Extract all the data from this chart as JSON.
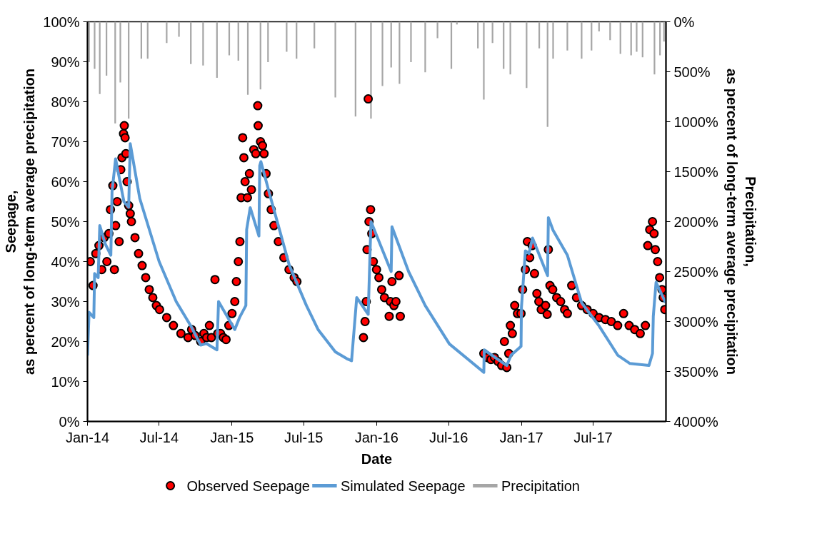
{
  "chart_data": {
    "type": "line",
    "xlabel": "Date",
    "ylabel": "Seepage,\nas percent of long-term average precipitation",
    "y2label": "Precipitation,\nas percent of long-term average precipitation",
    "xlim": [
      "2014-01-01",
      "2018-01-01"
    ],
    "xticks": [
      {
        "value": "2014-01-01",
        "label": "Jan-14"
      },
      {
        "value": "2014-07-01",
        "label": "Jul-14"
      },
      {
        "value": "2015-01-01",
        "label": "Jan-15"
      },
      {
        "value": "2015-07-01",
        "label": "Jul-15"
      },
      {
        "value": "2016-01-01",
        "label": "Jan-16"
      },
      {
        "value": "2016-07-01",
        "label": "Jul-16"
      },
      {
        "value": "2017-01-01",
        "label": "Jan-17"
      },
      {
        "value": "2017-07-01",
        "label": "Jul-17"
      }
    ],
    "ylim": [
      0,
      100
    ],
    "yticks": [
      {
        "value": 0,
        "label": "0%"
      },
      {
        "value": 10,
        "label": "10%"
      },
      {
        "value": 20,
        "label": "20%"
      },
      {
        "value": 30,
        "label": "30%"
      },
      {
        "value": 40,
        "label": "40%"
      },
      {
        "value": 50,
        "label": "50%"
      },
      {
        "value": 60,
        "label": "60%"
      },
      {
        "value": 70,
        "label": "70%"
      },
      {
        "value": 80,
        "label": "80%"
      },
      {
        "value": 90,
        "label": "90%"
      },
      {
        "value": 100,
        "label": "100%"
      }
    ],
    "y2lim": [
      4000,
      0
    ],
    "y2ticks": [
      {
        "value": 0,
        "label": "0%"
      },
      {
        "value": 500,
        "label": "500%"
      },
      {
        "value": 1000,
        "label": "1000%"
      },
      {
        "value": 1500,
        "label": "1500%"
      },
      {
        "value": 2000,
        "label": "2000%"
      },
      {
        "value": 2500,
        "label": "2500%"
      },
      {
        "value": 3000,
        "label": "3000%"
      },
      {
        "value": 3500,
        "label": "3500%"
      },
      {
        "value": 4000,
        "label": "4000%"
      }
    ],
    "grid": false,
    "legend": "bottom",
    "series": [
      {
        "name": "Observed Seepage",
        "type": "scatter",
        "marker": "circle",
        "color": "#ff0000",
        "x": [
          "2014-01-08",
          "2014-01-15",
          "2014-01-22",
          "2014-01-30",
          "2014-02-06",
          "2014-02-12",
          "2014-02-19",
          "2014-02-24",
          "2014-02-28",
          "2014-03-06",
          "2014-03-10",
          "2014-03-13",
          "2014-03-17",
          "2014-03-22",
          "2014-03-26",
          "2014-03-29",
          "2014-04-02",
          "2014-04-04",
          "2014-04-06",
          "2014-04-08",
          "2014-04-11",
          "2014-04-15",
          "2014-04-19",
          "2014-04-22",
          "2014-05-01",
          "2014-05-10",
          "2014-05-19",
          "2014-05-28",
          "2014-06-06",
          "2014-06-15",
          "2014-06-24",
          "2014-07-02",
          "2014-07-20",
          "2014-08-06",
          "2014-08-25",
          "2014-09-12",
          "2014-09-21",
          "2014-09-30",
          "2014-10-14",
          "2014-10-22",
          "2014-10-29",
          "2014-11-05",
          "2014-11-10",
          "2014-11-19",
          "2014-11-26",
          "2014-12-03",
          "2014-12-10",
          "2014-12-17",
          "2014-12-24",
          "2015-01-01",
          "2015-01-08",
          "2015-01-12",
          "2015-01-17",
          "2015-01-21",
          "2015-01-24",
          "2015-01-28",
          "2015-01-31",
          "2015-02-03",
          "2015-02-09",
          "2015-02-14",
          "2015-02-19",
          "2015-02-25",
          "2015-03-02",
          "2015-03-07",
          "2015-03-08",
          "2015-03-14",
          "2015-03-19",
          "2015-03-23",
          "2015-03-28",
          "2015-04-03",
          "2015-04-10",
          "2015-04-17",
          "2015-04-28",
          "2015-05-12",
          "2015-05-25",
          "2015-06-07",
          "2015-06-14",
          "2015-11-29",
          "2015-12-03",
          "2015-12-06",
          "2015-12-08",
          "2015-12-11",
          "2015-12-13",
          "2015-12-17",
          "2015-12-20",
          "2015-12-24",
          "2016-01-01",
          "2016-01-07",
          "2016-01-14",
          "2016-01-21",
          "2016-02-02",
          "2016-02-05",
          "2016-02-09",
          "2016-02-14",
          "2016-02-19",
          "2016-02-27",
          "2016-03-01",
          "2016-09-28",
          "2016-10-07",
          "2016-10-16",
          "2016-10-25",
          "2016-11-03",
          "2016-11-12",
          "2016-11-19",
          "2016-11-25",
          "2016-11-30",
          "2016-12-04",
          "2016-12-09",
          "2016-12-15",
          "2016-12-22",
          "2016-12-31",
          "2017-01-04",
          "2017-01-11",
          "2017-01-16",
          "2017-01-22",
          "2017-01-28",
          "2017-02-03",
          "2017-02-09",
          "2017-02-14",
          "2017-02-20",
          "2017-03-03",
          "2017-03-07",
          "2017-03-10",
          "2017-03-14",
          "2017-03-21",
          "2017-03-31",
          "2017-04-10",
          "2017-04-20",
          "2017-04-27",
          "2017-05-08",
          "2017-05-20",
          "2017-06-02",
          "2017-06-16",
          "2017-07-01",
          "2017-07-16",
          "2017-08-01",
          "2017-08-16",
          "2017-09-01",
          "2017-09-16",
          "2017-09-30",
          "2017-10-14",
          "2017-10-28",
          "2017-11-10",
          "2017-11-16",
          "2017-11-21",
          "2017-11-28",
          "2017-12-02",
          "2017-12-05",
          "2017-12-11",
          "2017-12-16",
          "2017-12-22",
          "2017-12-25",
          "2017-12-29"
        ],
        "values": [
          40,
          34,
          42,
          44,
          38,
          46,
          40,
          47,
          53,
          59,
          38,
          49,
          55,
          45,
          63,
          66,
          72,
          74,
          71,
          67,
          60,
          54,
          52,
          50,
          46,
          42,
          39,
          36,
          33,
          31,
          29,
          28,
          26,
          24,
          22,
          21,
          23,
          21.5,
          20,
          22,
          21,
          24,
          21,
          35.5,
          22,
          22,
          21,
          20.5,
          24,
          27,
          30,
          35,
          40,
          45,
          56,
          71,
          66,
          60,
          56,
          62,
          58,
          68,
          67,
          79,
          74,
          70,
          69,
          67,
          62,
          57,
          53,
          49,
          45,
          41,
          38,
          36,
          35,
          21,
          25,
          30,
          43,
          80.7,
          50,
          53,
          47,
          40,
          38,
          36,
          33,
          31,
          26.3,
          30,
          35,
          29,
          30,
          36.5,
          26.3,
          17,
          16,
          15.5,
          16,
          15,
          14,
          20,
          13.5,
          17,
          24,
          22,
          29,
          27,
          27,
          33,
          38,
          45,
          41,
          44,
          37,
          32,
          30,
          28,
          29,
          26.8,
          43,
          34,
          33,
          31,
          30,
          28,
          27,
          34,
          31,
          29,
          28,
          27,
          26,
          25.5,
          25,
          24,
          27,
          24,
          23,
          22,
          24,
          44,
          48,
          50,
          47,
          43,
          40,
          36,
          33,
          31,
          28
        ]
      },
      {
        "name": "Simulated Seepage",
        "marker": "none",
        "color": "#5b9bd5",
        "x": [
          "2014-01-01",
          "2014-01-05",
          "2014-01-17",
          "2014-01-19",
          "2014-01-28",
          "2014-02-01",
          "2014-02-15",
          "2014-03-01",
          "2014-03-04",
          "2014-03-13",
          "2014-04-03",
          "2014-04-15",
          "2014-04-19",
          "2014-05-13",
          "2014-07-01",
          "2014-08-13",
          "2014-09-19",
          "2014-10-14",
          "2014-10-28",
          "2014-11-24",
          "2014-11-28",
          "2015-01-08",
          "2015-01-20",
          "2015-02-05",
          "2015-02-07",
          "2015-02-16",
          "2015-03-10",
          "2015-03-12",
          "2015-03-15",
          "2015-04-09",
          "2015-05-26",
          "2015-07-08",
          "2015-08-07",
          "2015-09-19",
          "2015-10-18",
          "2015-10-30",
          "2015-11-12",
          "2015-12-11",
          "2015-12-18",
          "2016-02-07",
          "2016-02-09",
          "2016-03-22",
          "2016-05-03",
          "2016-07-03",
          "2016-09-28",
          "2016-09-29",
          "2016-11-25",
          "2016-12-06",
          "2016-12-31",
          "2017-01-01",
          "2017-01-11",
          "2017-01-20",
          "2017-01-29",
          "2017-03-08",
          "2017-03-10",
          "2017-03-22",
          "2017-04-27",
          "2017-06-02",
          "2017-07-16",
          "2017-09-01",
          "2017-10-02",
          "2017-11-19",
          "2017-11-28",
          "2017-11-30",
          "2017-12-07",
          "2017-12-31"
        ],
        "values": [
          16.5,
          27.3,
          26,
          37,
          36,
          49,
          44.4,
          41.6,
          57.5,
          65.7,
          55,
          53.6,
          69.5,
          55.8,
          40,
          30,
          23.9,
          19.1,
          19.5,
          17.9,
          30,
          23,
          26,
          29,
          48,
          53.5,
          46.4,
          64,
          65,
          55.8,
          39,
          29,
          22.9,
          17.4,
          15.7,
          15.2,
          31,
          26.8,
          50,
          37.5,
          48.7,
          37.5,
          29,
          19.4,
          12.3,
          17.9,
          14,
          16.6,
          18.8,
          28.5,
          42.7,
          42,
          45.9,
          36.5,
          51,
          47.8,
          41.6,
          29.7,
          23.9,
          16.6,
          14.5,
          14,
          17,
          26.3,
          34.8,
          29.7
        ]
      },
      {
        "name": "Precipitation",
        "type": "bar",
        "axis": "y2",
        "color": "#a6a6a6",
        "x": [
          "2014-01-05",
          "2014-01-19",
          "2014-02-01",
          "2014-02-18",
          "2014-03-12",
          "2014-03-25",
          "2014-04-15",
          "2014-05-17",
          "2014-06-02",
          "2014-07-20",
          "2014-08-20",
          "2014-09-19",
          "2014-10-20",
          "2014-11-24",
          "2014-12-25",
          "2015-01-17",
          "2015-02-10",
          "2015-03-14",
          "2015-04-02",
          "2015-05-19",
          "2015-06-13",
          "2015-07-28",
          "2015-09-19",
          "2015-11-09",
          "2015-12-18",
          "2016-01-16",
          "2016-02-07",
          "2016-02-28",
          "2016-03-28",
          "2016-05-03",
          "2016-06-03",
          "2016-07-08",
          "2016-07-22",
          "2016-09-13",
          "2016-09-28",
          "2016-10-20",
          "2016-11-17",
          "2016-12-04",
          "2017-01-14",
          "2017-02-15",
          "2017-03-08",
          "2017-03-22",
          "2017-04-27",
          "2017-06-02",
          "2017-06-27",
          "2017-07-16",
          "2017-08-13",
          "2017-09-08",
          "2017-10-05",
          "2017-10-19",
          "2017-11-03",
          "2017-12-03",
          "2017-12-17",
          "2017-12-27"
        ],
        "values": [
          403,
          471,
          724,
          540,
          1018,
          608,
          970,
          369,
          369,
          212,
          150,
          423,
          437,
          560,
          335,
          389,
          731,
          676,
          403,
          300,
          369,
          266,
          758,
          949,
          970,
          642,
          458,
          622,
          403,
          505,
          164,
          471,
          27,
          266,
          779,
          212,
          471,
          526,
          663,
          266,
          1052,
          369,
          287,
          369,
          287,
          96,
          184,
          321,
          335,
          300,
          355,
          526,
          335,
          198
        ]
      }
    ]
  }
}
